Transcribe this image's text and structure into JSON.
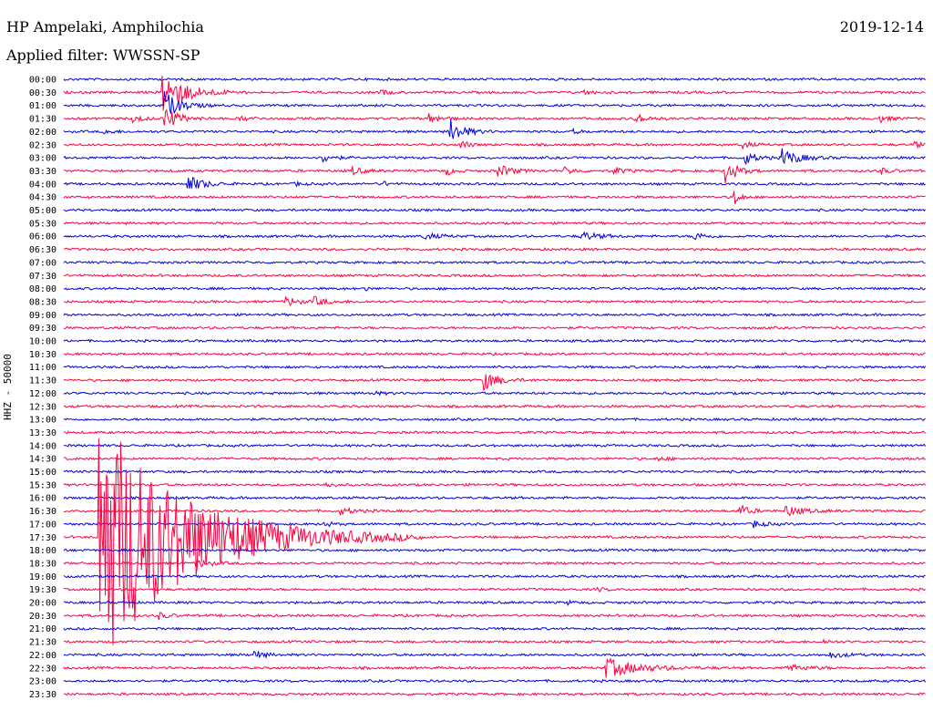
{
  "header": {
    "station": "HP Ampelaki, Amphilochia",
    "date": "2019-12-14",
    "filter": "Applied filter: WWSSN-SP"
  },
  "channel_label": "HHZ - 50000",
  "colors": {
    "trace_even": "#0000dd",
    "trace_odd": "#ff0040",
    "background": "#ffffff"
  },
  "chart_data": {
    "type": "line",
    "subtype": "helicorder",
    "title": "HP Ampelaki, Amphilochia",
    "ylabel": "HHZ - 50000",
    "x_span_minutes": 30,
    "rows": [
      {
        "label": "00:00",
        "color": "blue"
      },
      {
        "label": "00:30",
        "color": "red"
      },
      {
        "label": "01:00",
        "color": "blue"
      },
      {
        "label": "01:30",
        "color": "red"
      },
      {
        "label": "02:00",
        "color": "blue"
      },
      {
        "label": "02:30",
        "color": "red"
      },
      {
        "label": "03:00",
        "color": "blue"
      },
      {
        "label": "03:30",
        "color": "red"
      },
      {
        "label": "04:00",
        "color": "blue"
      },
      {
        "label": "04:30",
        "color": "red"
      },
      {
        "label": "05:00",
        "color": "blue"
      },
      {
        "label": "05:30",
        "color": "red"
      },
      {
        "label": "06:00",
        "color": "blue"
      },
      {
        "label": "06:30",
        "color": "red"
      },
      {
        "label": "07:00",
        "color": "blue"
      },
      {
        "label": "07:30",
        "color": "red"
      },
      {
        "label": "08:00",
        "color": "blue"
      },
      {
        "label": "08:30",
        "color": "red"
      },
      {
        "label": "09:00",
        "color": "blue"
      },
      {
        "label": "09:30",
        "color": "red"
      },
      {
        "label": "10:00",
        "color": "blue"
      },
      {
        "label": "10:30",
        "color": "red"
      },
      {
        "label": "11:00",
        "color": "blue"
      },
      {
        "label": "11:30",
        "color": "red"
      },
      {
        "label": "12:00",
        "color": "blue"
      },
      {
        "label": "12:30",
        "color": "red"
      },
      {
        "label": "13:00",
        "color": "blue"
      },
      {
        "label": "13:30",
        "color": "red"
      },
      {
        "label": "14:00",
        "color": "blue"
      },
      {
        "label": "14:30",
        "color": "red"
      },
      {
        "label": "15:00",
        "color": "blue"
      },
      {
        "label": "15:30",
        "color": "red"
      },
      {
        "label": "16:00",
        "color": "blue"
      },
      {
        "label": "16:30",
        "color": "red"
      },
      {
        "label": "17:00",
        "color": "blue"
      },
      {
        "label": "17:30",
        "color": "red"
      },
      {
        "label": "18:00",
        "color": "blue"
      },
      {
        "label": "18:30",
        "color": "red"
      },
      {
        "label": "19:00",
        "color": "blue"
      },
      {
        "label": "19:30",
        "color": "red"
      },
      {
        "label": "20:00",
        "color": "blue"
      },
      {
        "label": "20:30",
        "color": "red"
      },
      {
        "label": "21:00",
        "color": "blue"
      },
      {
        "label": "21:30",
        "color": "red"
      },
      {
        "label": "22:00",
        "color": "blue"
      },
      {
        "label": "22:30",
        "color": "red"
      },
      {
        "label": "23:00",
        "color": "blue"
      },
      {
        "label": "23:30",
        "color": "red"
      }
    ],
    "events": [
      {
        "row": 1,
        "minute": 3.4,
        "amp": 2.2,
        "dur": 1.2
      },
      {
        "row": 2,
        "minute": 3.5,
        "amp": 1.3,
        "dur": 0.8
      },
      {
        "row": 3,
        "minute": 3.5,
        "amp": 1.1,
        "dur": 0.7
      },
      {
        "row": 3,
        "minute": 2.3,
        "amp": 0.4,
        "dur": 0.6
      },
      {
        "row": 3,
        "minute": 6.1,
        "amp": 0.3,
        "dur": 0.5
      },
      {
        "row": 3,
        "minute": 12.7,
        "amp": 0.5,
        "dur": 0.6
      },
      {
        "row": 3,
        "minute": 19.8,
        "amp": 0.6,
        "dur": 0.6
      },
      {
        "row": 3,
        "minute": 28.3,
        "amp": 0.4,
        "dur": 0.6
      },
      {
        "row": 1,
        "minute": 11.0,
        "amp": 0.3,
        "dur": 0.4
      },
      {
        "row": 1,
        "minute": 18.0,
        "amp": 0.2,
        "dur": 0.6
      },
      {
        "row": 4,
        "minute": 13.4,
        "amp": 1.3,
        "dur": 0.7
      },
      {
        "row": 4,
        "minute": 1.4,
        "amp": 0.3,
        "dur": 0.4
      },
      {
        "row": 4,
        "minute": 17.7,
        "amp": 0.2,
        "dur": 0.4
      },
      {
        "row": 5,
        "minute": 13.8,
        "amp": 0.5,
        "dur": 0.4
      },
      {
        "row": 5,
        "minute": 23.6,
        "amp": 0.4,
        "dur": 0.4
      },
      {
        "row": 5,
        "minute": 29.6,
        "amp": 0.3,
        "dur": 0.4
      },
      {
        "row": 6,
        "minute": 9.0,
        "amp": 0.5,
        "dur": 0.5
      },
      {
        "row": 6,
        "minute": 23.7,
        "amp": 0.6,
        "dur": 0.6
      },
      {
        "row": 6,
        "minute": 25.0,
        "amp": 0.8,
        "dur": 0.9
      },
      {
        "row": 7,
        "minute": 10.0,
        "amp": 0.4,
        "dur": 0.6
      },
      {
        "row": 7,
        "minute": 13.3,
        "amp": 0.4,
        "dur": 0.4
      },
      {
        "row": 7,
        "minute": 15.1,
        "amp": 0.6,
        "dur": 0.7
      },
      {
        "row": 7,
        "minute": 17.4,
        "amp": 0.4,
        "dur": 0.5
      },
      {
        "row": 7,
        "minute": 19.1,
        "amp": 0.4,
        "dur": 0.5
      },
      {
        "row": 7,
        "minute": 23.0,
        "amp": 1.3,
        "dur": 0.6
      },
      {
        "row": 7,
        "minute": 28.4,
        "amp": 0.3,
        "dur": 0.5
      },
      {
        "row": 8,
        "minute": 4.3,
        "amp": 0.8,
        "dur": 0.8
      },
      {
        "row": 8,
        "minute": 8.0,
        "amp": 0.2,
        "dur": 0.4
      },
      {
        "row": 8,
        "minute": 11.1,
        "amp": 0.2,
        "dur": 0.4
      },
      {
        "row": 9,
        "minute": 23.3,
        "amp": 1.0,
        "dur": 0.3
      },
      {
        "row": 12,
        "minute": 12.5,
        "amp": 0.3,
        "dur": 0.8
      },
      {
        "row": 12,
        "minute": 18.0,
        "amp": 0.4,
        "dur": 0.9
      },
      {
        "row": 12,
        "minute": 21.9,
        "amp": 0.4,
        "dur": 0.6
      },
      {
        "row": 16,
        "minute": 10.4,
        "amp": 0.4,
        "dur": 0.2
      },
      {
        "row": 17,
        "minute": 7.7,
        "amp": 0.5,
        "dur": 0.6
      },
      {
        "row": 17,
        "minute": 8.7,
        "amp": 0.4,
        "dur": 0.7
      },
      {
        "row": 23,
        "minute": 14.6,
        "amp": 0.9,
        "dur": 0.8
      },
      {
        "row": 24,
        "minute": 10.7,
        "amp": 0.2,
        "dur": 0.5
      },
      {
        "row": 29,
        "minute": 20.6,
        "amp": 0.2,
        "dur": 0.5
      },
      {
        "row": 31,
        "minute": 9.1,
        "amp": 0.3,
        "dur": 0.4
      },
      {
        "row": 33,
        "minute": 9.6,
        "amp": 0.3,
        "dur": 0.8
      },
      {
        "row": 33,
        "minute": 23.5,
        "amp": 0.6,
        "dur": 0.5
      },
      {
        "row": 33,
        "minute": 25.1,
        "amp": 0.5,
        "dur": 0.9
      },
      {
        "row": 34,
        "minute": 9.0,
        "amp": 0.3,
        "dur": 0.4
      },
      {
        "row": 34,
        "minute": 24.0,
        "amp": 0.3,
        "dur": 0.6
      },
      {
        "row": 35,
        "minute": 1.2,
        "amp": 12.0,
        "dur": 4.5
      },
      {
        "row": 37,
        "minute": 4.6,
        "amp": 0.4,
        "dur": 0.8
      },
      {
        "row": 39,
        "minute": 18.5,
        "amp": 0.2,
        "dur": 0.5
      },
      {
        "row": 40,
        "minute": 17.5,
        "amp": 0.2,
        "dur": 0.3
      },
      {
        "row": 41,
        "minute": 3.3,
        "amp": 0.3,
        "dur": 0.5
      },
      {
        "row": 43,
        "minute": 26.4,
        "amp": 0.2,
        "dur": 0.4
      },
      {
        "row": 44,
        "minute": 6.6,
        "amp": 0.5,
        "dur": 0.5
      },
      {
        "row": 44,
        "minute": 26.6,
        "amp": 0.3,
        "dur": 0.8
      },
      {
        "row": 45,
        "minute": 18.8,
        "amp": 0.9,
        "dur": 1.8
      },
      {
        "row": 45,
        "minute": 25.1,
        "amp": 0.3,
        "dur": 1.2
      }
    ]
  }
}
